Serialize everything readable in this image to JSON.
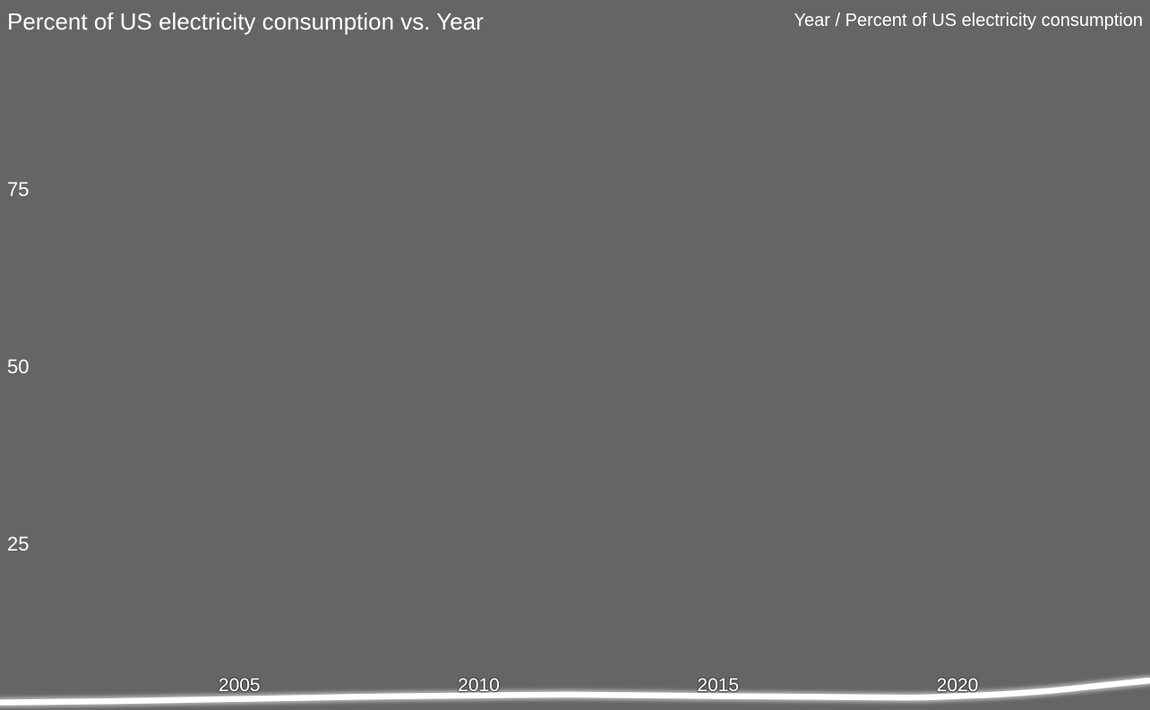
{
  "header": {
    "title": "Percent of US electricity consumption vs. Year",
    "series_readout": "Year / Percent of US electricity consumption"
  },
  "colors": {
    "background": "#656565",
    "line": "#ffffff",
    "text": "#ffffff"
  },
  "chart_data": {
    "type": "line",
    "title": "Percent of US electricity consumption vs. Year",
    "xlabel": "Year",
    "ylabel": "Percent of US electricity consumption",
    "grid": false,
    "legend_position": "top-right",
    "x_range": [
      2000,
      2024
    ],
    "y_ticks": [
      75,
      50,
      25
    ],
    "x_ticks": [
      2005,
      2010,
      2015,
      2020
    ],
    "series": [
      {
        "name": "Percent of US electricity consumption",
        "x": [
          2000,
          2002.5,
          2005,
          2007.5,
          2010,
          2012,
          2015,
          2017,
          2019,
          2020,
          2021,
          2022,
          2023,
          2024
        ],
        "y": [
          2.7,
          2.9,
          3.2,
          3.5,
          3.7,
          3.8,
          3.6,
          3.5,
          3.4,
          3.6,
          3.9,
          4.4,
          5.1,
          5.8
        ]
      }
    ]
  }
}
